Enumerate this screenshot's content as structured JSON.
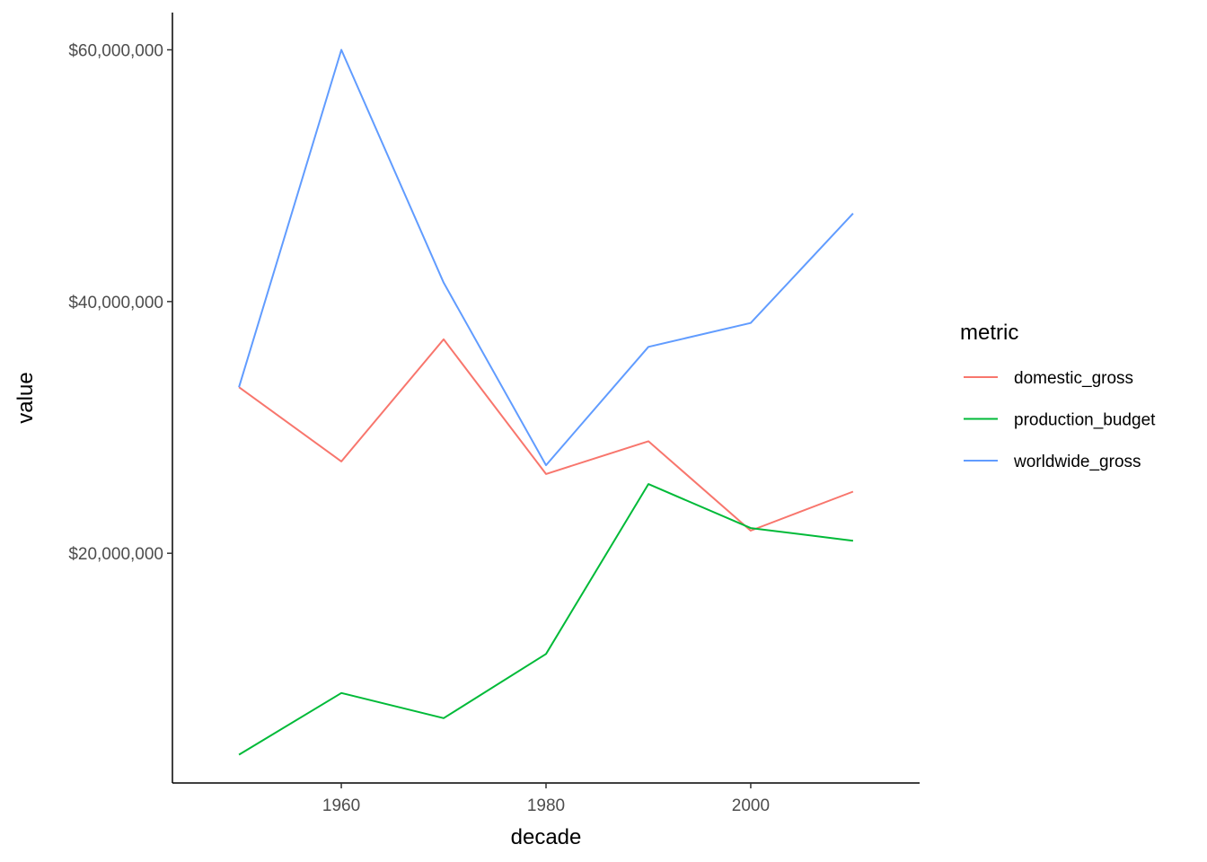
{
  "chart_data": {
    "type": "line",
    "x_values": [
      1950,
      1960,
      1970,
      1980,
      1990,
      2000,
      2010
    ],
    "x_ticks": [
      1960,
      1980,
      2000
    ],
    "x_tick_labels": [
      "1960",
      "1980",
      "2000"
    ],
    "y_ticks": [
      20000000,
      40000000,
      60000000
    ],
    "y_tick_labels": [
      "$20,000,000",
      "$40,000,000",
      "$60,000,000"
    ],
    "xlim": [
      1943.5,
      2016.5
    ],
    "ylim": [
      1750000,
      62960000
    ],
    "xlabel": "decade",
    "ylabel": "value",
    "grid": false,
    "legend": {
      "title": "metric",
      "placement": "right"
    },
    "series": [
      {
        "name": "domestic_gross",
        "color": "#F8766D",
        "values": [
          33200000,
          27300000,
          37000000,
          26300000,
          28900000,
          21800000,
          24900000
        ]
      },
      {
        "name": "production_budget",
        "color": "#00BA38",
        "values": [
          4000000,
          8900000,
          6900000,
          12000000,
          25500000,
          22000000,
          21000000
        ]
      },
      {
        "name": "worldwide_gross",
        "color": "#619CFF",
        "values": [
          33200000,
          60000000,
          41500000,
          27000000,
          36400000,
          38300000,
          47000000
        ]
      }
    ]
  }
}
